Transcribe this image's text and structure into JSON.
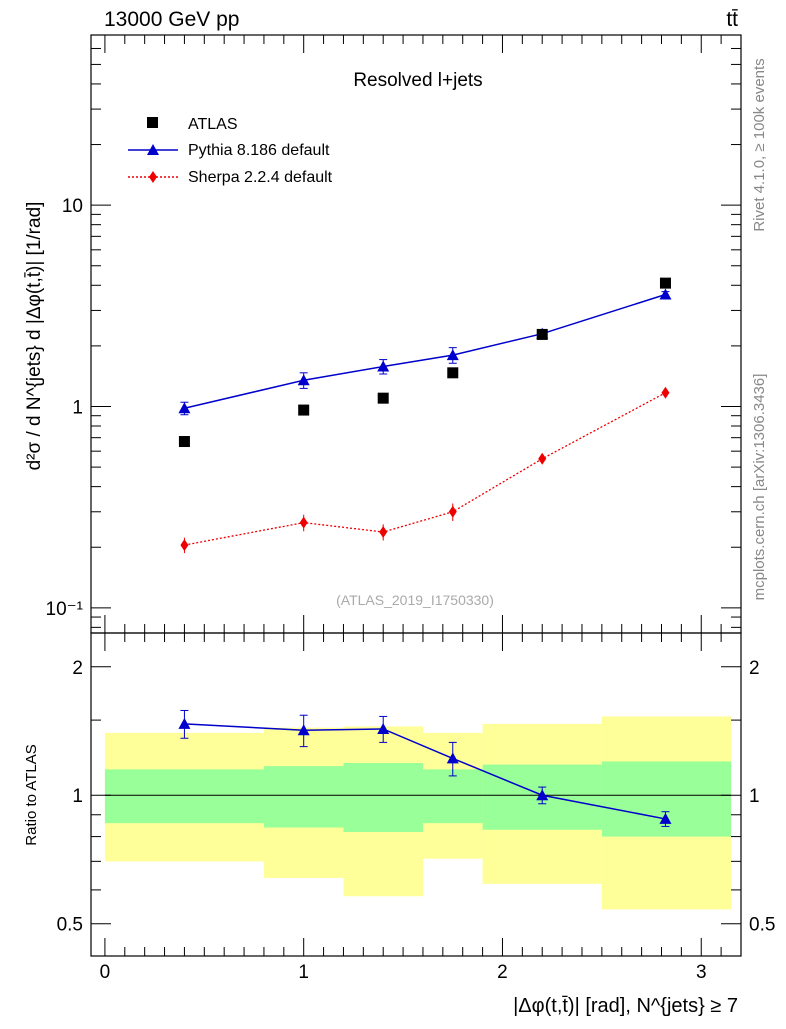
{
  "header": {
    "left": "13000 GeV pp",
    "right": "tt̄"
  },
  "side_labels": {
    "rivet": "Rivet 4.1.0, ≥ 100k events",
    "mcplots": "mcplots.cern.ch [arXiv:1306.3436]"
  },
  "colors": {
    "atlas": "#000000",
    "pythia": "#0000cc",
    "sherpa": "#ee0000",
    "band_outer": "#ffff99",
    "band_inner": "#99ff99"
  },
  "chart_data": [
    {
      "type": "scatter",
      "panel": "main",
      "title": "Resolved l+jets",
      "analysis_tag": "(ATLAS_2019_I1750330)",
      "ylabel": "d²σ / d N^{jets} d |Δφ(t,t̄)| [1/rad]",
      "yscale": "log",
      "ylim": [
        0.075,
        70
      ],
      "xlim": [
        -0.07,
        3.2
      ],
      "ytick_labels": [
        "10⁻¹",
        "1",
        "10"
      ],
      "legend": [
        "ATLAS",
        "Pythia 8.186 default",
        "Sherpa 2.2.4 default"
      ],
      "series": [
        {
          "name": "ATLAS",
          "marker": "square",
          "x": [
            0.4,
            1.0,
            1.4,
            1.75,
            2.2,
            2.82
          ],
          "y": [
            0.67,
            0.96,
            1.1,
            1.47,
            2.28,
            4.1
          ]
        },
        {
          "name": "Pythia 8.186 default",
          "marker": "triangle",
          "line": "solid",
          "x": [
            0.4,
            1.0,
            1.4,
            1.75,
            2.2,
            2.82
          ],
          "y": [
            0.98,
            1.35,
            1.58,
            1.8,
            2.3,
            3.6
          ],
          "err": [
            0.07,
            0.12,
            0.13,
            0.16,
            0.1,
            0.12
          ]
        },
        {
          "name": "Sherpa 2.2.4 default",
          "marker": "diamond",
          "line": "dotted",
          "x": [
            0.4,
            1.0,
            1.4,
            1.75,
            2.2,
            2.82
          ],
          "y": [
            0.205,
            0.265,
            0.238,
            0.3,
            0.55,
            1.17
          ],
          "err": [
            0.018,
            0.025,
            0.022,
            0.03,
            0.02,
            0.04
          ]
        }
      ]
    },
    {
      "type": "line",
      "panel": "ratio",
      "ylabel": "Ratio to ATLAS",
      "xlabel": "|Δφ(t,t̄)| [rad], N^{jets} ≥ 7",
      "ylim": [
        0.42,
        2.4
      ],
      "xlim": [
        -0.07,
        3.2
      ],
      "xtick_labels": [
        "0",
        "1",
        "2",
        "3"
      ],
      "ytick_labels": [
        "0.5",
        "1",
        "2"
      ],
      "bands": [
        {
          "x": [
            0.0,
            0.8
          ],
          "outer": [
            0.7,
            1.4
          ],
          "inner": [
            0.86,
            1.15
          ]
        },
        {
          "x": [
            0.8,
            1.2
          ],
          "outer": [
            0.64,
            1.44
          ],
          "inner": [
            0.84,
            1.17
          ]
        },
        {
          "x": [
            1.2,
            1.6
          ],
          "outer": [
            0.58,
            1.45
          ],
          "inner": [
            0.82,
            1.19
          ]
        },
        {
          "x": [
            1.6,
            1.9
          ],
          "outer": [
            0.71,
            1.4
          ],
          "inner": [
            0.86,
            1.15
          ]
        },
        {
          "x": [
            1.9,
            2.5
          ],
          "outer": [
            0.62,
            1.47
          ],
          "inner": [
            0.83,
            1.18
          ]
        },
        {
          "x": [
            2.5,
            3.15
          ],
          "outer": [
            0.54,
            1.53
          ],
          "inner": [
            0.8,
            1.2
          ]
        }
      ],
      "series": [
        {
          "name": "Pythia 8.186 default / ATLAS",
          "x": [
            0.4,
            1.0,
            1.4,
            1.75,
            2.2,
            2.82
          ],
          "y": [
            1.47,
            1.42,
            1.43,
            1.22,
            1.0,
            0.88
          ],
          "err": [
            0.11,
            0.12,
            0.1,
            0.11,
            0.045,
            0.035
          ]
        }
      ]
    }
  ]
}
